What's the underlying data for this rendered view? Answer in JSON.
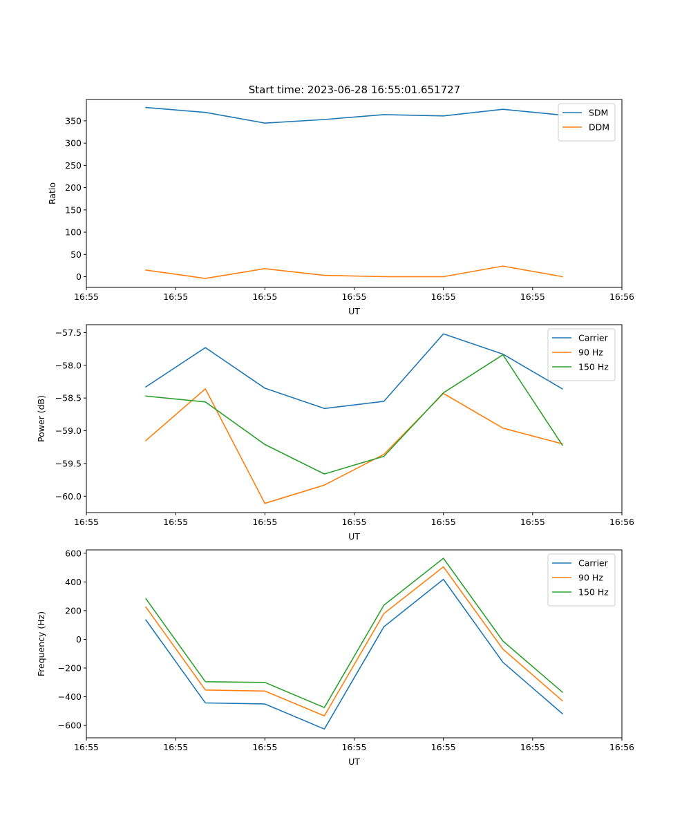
{
  "figure_title": "Start time: 2023-06-28 16:55:01.651727",
  "colors": {
    "blue": "#1f77b4",
    "orange": "#ff7f0e",
    "green": "#2ca02c"
  },
  "chart_data": [
    {
      "type": "line",
      "name": "ratio",
      "title": "Start time: 2023-06-28 16:55:01.651727",
      "xlabel": "UT",
      "ylabel": "Ratio",
      "x": [
        1.0,
        2.0,
        3.0,
        4.0,
        5.0,
        6.0,
        7.0,
        8.0
      ],
      "xlim": [
        0.0,
        9.0
      ],
      "xticks": [
        0.0,
        1.5,
        3.0,
        4.5,
        6.0,
        7.5,
        9.0
      ],
      "xticklabels": [
        "16:55",
        "16:55",
        "16:55",
        "16:55",
        "16:55",
        "16:55",
        "16:56"
      ],
      "ylim": [
        -24,
        398
      ],
      "yticks": [
        0,
        50,
        100,
        150,
        200,
        250,
        300,
        350
      ],
      "yticklabels": [
        "0",
        "50",
        "100",
        "150",
        "200",
        "250",
        "300",
        "350"
      ],
      "legend_position": "top-right",
      "series": [
        {
          "name": "SDM",
          "color": "#1f77b4",
          "values": [
            380,
            369,
            345,
            353,
            364,
            361,
            376,
            363
          ]
        },
        {
          "name": "DDM",
          "color": "#ff7f0e",
          "values": [
            15,
            -4,
            18,
            3,
            0,
            0,
            24,
            0
          ]
        }
      ]
    },
    {
      "type": "line",
      "name": "power",
      "title": "",
      "xlabel": "UT",
      "ylabel": "Power (dB)",
      "x": [
        1.0,
        2.0,
        3.0,
        4.0,
        5.0,
        6.0,
        7.0,
        8.0
      ],
      "xlim": [
        0.0,
        9.0
      ],
      "xticks": [
        0.0,
        1.5,
        3.0,
        4.5,
        6.0,
        7.5,
        9.0
      ],
      "xticklabels": [
        "16:55",
        "16:55",
        "16:55",
        "16:55",
        "16:55",
        "16:55",
        "16:56"
      ],
      "ylim": [
        -60.25,
        -57.38
      ],
      "yticks": [
        -60.0,
        -59.5,
        -59.0,
        -58.5,
        -58.0,
        -57.5
      ],
      "yticklabels": [
        "−60.0",
        "−59.5",
        "−59.0",
        "−58.5",
        "−58.0",
        "−57.5"
      ],
      "legend_position": "top-right",
      "series": [
        {
          "name": "Carrier",
          "color": "#1f77b4",
          "values": [
            -58.33,
            -57.73,
            -58.35,
            -58.66,
            -58.55,
            -57.52,
            -57.83,
            -58.36
          ]
        },
        {
          "name": "90 Hz",
          "color": "#ff7f0e",
          "values": [
            -59.15,
            -58.36,
            -60.11,
            -59.83,
            -59.36,
            -58.43,
            -58.96,
            -59.2
          ]
        },
        {
          "name": "150 Hz",
          "color": "#2ca02c",
          "values": [
            -58.47,
            -58.56,
            -59.21,
            -59.66,
            -59.39,
            -58.42,
            -57.84,
            -59.22
          ]
        }
      ]
    },
    {
      "type": "line",
      "name": "frequency",
      "title": "",
      "xlabel": "UT",
      "ylabel": "Frequency (Hz)",
      "x": [
        1.0,
        2.0,
        3.0,
        4.0,
        5.0,
        6.0,
        7.0,
        8.0
      ],
      "xlim": [
        0.0,
        9.0
      ],
      "xticks": [
        0.0,
        1.5,
        3.0,
        4.5,
        6.0,
        7.5,
        9.0
      ],
      "xticklabels": [
        "16:55",
        "16:55",
        "16:55",
        "16:55",
        "16:55",
        "16:55",
        "16:56"
      ],
      "ylim": [
        -686,
        623
      ],
      "yticks": [
        -600,
        -400,
        -200,
        0,
        200,
        400,
        600
      ],
      "yticklabels": [
        "−600",
        "−400",
        "−200",
        "0",
        "200",
        "400",
        "600"
      ],
      "legend_position": "top-right",
      "series": [
        {
          "name": "Carrier",
          "color": "#1f77b4",
          "values": [
            135,
            -443,
            -450,
            -625,
            88,
            418,
            -160,
            -518
          ]
        },
        {
          "name": "90 Hz",
          "color": "#ff7f0e",
          "values": [
            225,
            -353,
            -360,
            -533,
            180,
            505,
            -68,
            -428
          ]
        },
        {
          "name": "150 Hz",
          "color": "#2ca02c",
          "values": [
            283,
            -295,
            -300,
            -475,
            238,
            565,
            -12,
            -368
          ]
        }
      ]
    }
  ]
}
